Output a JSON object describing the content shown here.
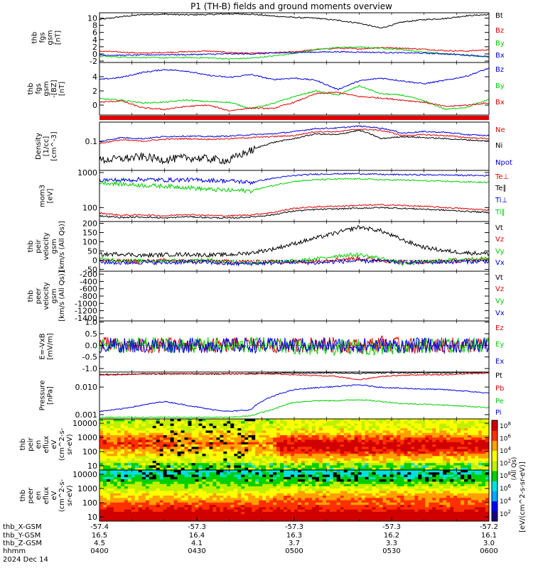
{
  "title": "P1 (TH-B) fields and ground moments overview",
  "colors": {
    "black": "#000000",
    "red": "#e00000",
    "green": "#00d000",
    "blue": "#0000e0"
  },
  "chart_data": [
    {
      "type": "line",
      "panel": "fgs_gsm",
      "ylabel": [
        "thb",
        "fgs",
        "gsm",
        "[nT]"
      ],
      "ylim": [
        -2.4,
        11.5
      ],
      "yticks": [
        "-2",
        "0",
        "2",
        "4",
        "6",
        "8",
        "10"
      ],
      "ytick_values": [
        -2,
        0,
        2,
        4,
        6,
        8,
        10
      ],
      "series": [
        {
          "name": "Bt",
          "color": "#000000",
          "values": [
            9.6,
            10.4,
            11.0,
            11.1,
            10.9,
            11.0,
            11.2,
            11.1,
            10.6,
            10.2,
            10.0,
            9.4,
            8.6,
            7.2,
            8.9,
            9.6,
            9.9,
            10.7,
            11.0
          ]
        },
        {
          "name": "Bz",
          "color": "#e00000",
          "values": [
            0.8,
            0.5,
            0.2,
            0.4,
            0.6,
            0.8,
            0.4,
            0.2,
            0.3,
            0.6,
            1.2,
            1.6,
            1.4,
            1.8,
            1.6,
            1.3,
            0.9,
            0.8,
            1.2
          ]
        },
        {
          "name": "By",
          "color": "#00d000",
          "values": [
            -0.6,
            -0.9,
            -1.0,
            -1.1,
            -1.0,
            -1.1,
            -1.4,
            -1.2,
            -0.6,
            0.2,
            1.2,
            1.8,
            1.9,
            1.6,
            1.2,
            0.5,
            0.0,
            -0.4,
            -0.8
          ]
        },
        {
          "name": "Bx",
          "color": "#0000e0",
          "values": [
            -0.3,
            -0.4,
            -0.3,
            -0.2,
            -0.2,
            -0.1,
            0.0,
            0.0,
            0.2,
            0.4,
            0.5,
            0.6,
            0.5,
            0.4,
            0.3,
            0.2,
            0.0,
            -0.3,
            -0.8
          ]
        }
      ]
    },
    {
      "type": "line",
      "panel": "fgs_gsm_zoom",
      "ylabel": [
        "thb",
        "fgs",
        "gsm",
        "-[BZ]",
        "[nT]"
      ],
      "ylim": [
        -1.4,
        6.0
      ],
      "yticks": [
        "0",
        "2",
        "4"
      ],
      "ytick_values": [
        0,
        2,
        4
      ],
      "series": [
        {
          "name": "Bz",
          "color": "#0000e0",
          "values": [
            3.6,
            3.9,
            4.6,
            5.0,
            4.8,
            4.2,
            3.9,
            4.3,
            3.6,
            3.8,
            3.5,
            2.2,
            3.4,
            3.8,
            3.4,
            3.0,
            3.5,
            4.1,
            5.2
          ]
        },
        {
          "name": "By",
          "color": "#00d000",
          "values": [
            0.9,
            0.7,
            0.3,
            0.4,
            0.7,
            0.5,
            0.4,
            -0.5,
            0.2,
            1.2,
            2.0,
            1.4,
            2.7,
            1.6,
            1.4,
            0.6,
            -0.6,
            -0.3,
            0.8
          ]
        },
        {
          "name": "Bx",
          "color": "#e00000",
          "values": [
            0.4,
            0.6,
            -0.4,
            -0.6,
            -0.2,
            0.0,
            -0.8,
            -0.4,
            -0.5,
            0.4,
            1.6,
            1.8,
            1.2,
            1.0,
            0.7,
            0.4,
            -0.2,
            0.0,
            0.3
          ]
        }
      ]
    },
    {
      "type": "line",
      "panel": "density",
      "ylabel": [
        "Density",
        "[1/cc]",
        "[cm^-3]"
      ],
      "log": true,
      "ylim": [
        0.012,
        0.4
      ],
      "yticks": [
        "0.1"
      ],
      "ytick_values": [
        0.1
      ],
      "series": [
        {
          "name": "Ne",
          "color": "#e00000",
          "values": [
            0.085,
            0.11,
            0.1,
            0.115,
            0.12,
            0.115,
            0.12,
            0.13,
            0.14,
            0.15,
            0.2,
            0.2,
            0.24,
            0.22,
            0.15,
            0.16,
            0.15,
            0.13,
            0.12
          ]
        },
        {
          "name": "Ni",
          "color": "#000000",
          "values": [
            0.025,
            0.028,
            0.032,
            0.026,
            0.03,
            0.028,
            0.024,
            0.05,
            0.09,
            0.12,
            0.17,
            0.16,
            0.22,
            0.12,
            0.14,
            0.13,
            0.12,
            0.11,
            0.1
          ]
        },
        {
          "name": "Npot",
          "color": "#0000e0",
          "values": [
            0.095,
            0.13,
            0.12,
            0.14,
            0.145,
            0.14,
            0.145,
            0.16,
            0.17,
            0.2,
            0.25,
            0.26,
            0.3,
            0.26,
            0.18,
            0.2,
            0.19,
            0.16,
            0.15
          ]
        }
      ]
    },
    {
      "type": "line",
      "panel": "temperature",
      "ylabel": [
        "mom3",
        "[eV]"
      ],
      "log": true,
      "ylim": [
        40,
        1150
      ],
      "yticks": [
        "100",
        "1000"
      ],
      "ytick_values": [
        100,
        1000
      ],
      "series": [
        {
          "name": "Te⊥",
          "color": "#e00000",
          "values": [
            70,
            60,
            62,
            58,
            64,
            60,
            58,
            62,
            72,
            95,
            105,
            110,
            115,
            120,
            115,
            108,
            100,
            92,
            85
          ]
        },
        {
          "name": "Te∥",
          "color": "#000000",
          "values": [
            58,
            52,
            54,
            50,
            55,
            52,
            50,
            54,
            62,
            80,
            88,
            92,
            96,
            100,
            95,
            90,
            84,
            78,
            72
          ]
        },
        {
          "name": "Ti⊥",
          "color": "#0000e0",
          "values": [
            620,
            600,
            640,
            610,
            620,
            600,
            580,
            520,
            680,
            820,
            900,
            920,
            930,
            880,
            870,
            860,
            850,
            830,
            820
          ]
        },
        {
          "name": "Ti∥",
          "color": "#00d000",
          "values": [
            520,
            470,
            430,
            410,
            380,
            330,
            310,
            300,
            420,
            560,
            620,
            650,
            660,
            620,
            610,
            580,
            560,
            540,
            520
          ]
        }
      ]
    },
    {
      "type": "line",
      "panel": "peir_velocity",
      "ylabel": [
        "thb",
        "peir",
        "velocity",
        "gsm",
        "[km/s (All Qs)]"
      ],
      "ylim": [
        -60,
        210
      ],
      "yticks": [
        "-50",
        "0",
        "50",
        "100",
        "150",
        "200"
      ],
      "ytick_values": [
        -50,
        0,
        50,
        100,
        150,
        200
      ],
      "series": [
        {
          "name": "Vt",
          "color": "#000000",
          "values": [
            30,
            35,
            25,
            30,
            32,
            28,
            30,
            40,
            60,
            90,
            120,
            150,
            180,
            160,
            110,
            70,
            50,
            40,
            35
          ]
        },
        {
          "name": "Vz",
          "color": "#e00000",
          "values": [
            0,
            -5,
            -5,
            -3,
            -5,
            -4,
            -8,
            -10,
            -8,
            -12,
            -5,
            5,
            10,
            0,
            -15,
            -10,
            -5,
            0,
            5
          ]
        },
        {
          "name": "Vy",
          "color": "#00d000",
          "values": [
            5,
            0,
            -5,
            0,
            -5,
            0,
            -10,
            -15,
            -10,
            -5,
            5,
            25,
            30,
            10,
            -20,
            -10,
            0,
            5,
            10
          ]
        },
        {
          "name": "Vx",
          "color": "#0000e0",
          "values": [
            -10,
            -15,
            -12,
            -14,
            -10,
            -12,
            -20,
            -18,
            -15,
            -10,
            -15,
            -8,
            -5,
            -5,
            -10,
            -12,
            -10,
            -8,
            -6
          ]
        }
      ]
    },
    {
      "type": "line",
      "panel": "peer_velocity",
      "ylabel": [
        "thb",
        "peer",
        "velocity",
        "gsm",
        "[km/s (All Qs)]"
      ],
      "ylim": [
        -1480,
        -120
      ],
      "yticks": [
        "-1400",
        "-1200",
        "-1000",
        "-800",
        "-600",
        "-400",
        "-200"
      ],
      "ytick_values": [
        -1400,
        -1200,
        -1000,
        -800,
        -600,
        -400,
        -200
      ],
      "series": [
        {
          "name": "Vt",
          "color": "#000000",
          "values": []
        },
        {
          "name": "Vz",
          "color": "#e00000",
          "values": []
        },
        {
          "name": "Vy",
          "color": "#00d000",
          "values": []
        },
        {
          "name": "Vx",
          "color": "#0000e0",
          "values": []
        }
      ]
    },
    {
      "type": "line",
      "panel": "efield",
      "ylabel": [
        "E=-VxB",
        "[mV/m]"
      ],
      "ylim": [
        -1.15,
        1.05
      ],
      "yticks": [
        "-1.0",
        "-0.5",
        "0.0",
        "0.5",
        "1.0"
      ],
      "ytick_values": [
        -1.0,
        -0.5,
        0.0,
        0.5,
        1.0
      ],
      "series": [
        {
          "name": "Ez",
          "color": "#e00000",
          "values": [
            0.05,
            0.0,
            -0.05,
            0.02,
            0.0,
            -0.03,
            0.0,
            0.05,
            -0.02,
            0.0,
            0.05,
            0.02,
            -0.05,
            0.1,
            0.0,
            -0.05,
            0.02,
            0.0,
            0.02
          ]
        },
        {
          "name": "Ey",
          "color": "#00d000",
          "values": [
            0.02,
            -0.05,
            0.05,
            0.0,
            -0.02,
            0.03,
            -0.05,
            0.0,
            0.05,
            -0.05,
            -0.15,
            -0.1,
            -0.05,
            -0.1,
            -0.05,
            0.0,
            -0.05,
            0.02,
            0.0
          ]
        },
        {
          "name": "Ex",
          "color": "#0000e0",
          "values": [
            0.0,
            0.0,
            0.0,
            0.0,
            0.0,
            0.0,
            0.0,
            0.0,
            0.0,
            0.0,
            0.0,
            0.0,
            0.0,
            0.0,
            0.0,
            0.0,
            0.0,
            0.0,
            0.0
          ]
        }
      ]
    },
    {
      "type": "line",
      "panel": "pressure",
      "ylabel": [
        "Pressure",
        "[nPa]"
      ],
      "log": true,
      "ylim": [
        0.0007,
        0.035
      ],
      "yticks": [
        "0.001",
        "0.010"
      ],
      "ytick_values": [
        0.001,
        0.01
      ],
      "series": [
        {
          "name": "Pt",
          "color": "#000000",
          "values": [
            0.028,
            0.029,
            0.03,
            0.03,
            0.03,
            0.03,
            0.03,
            0.031,
            0.032,
            0.032,
            0.032,
            0.033,
            0.031,
            0.033,
            0.033,
            0.033,
            0.033,
            0.033,
            0.034
          ]
        },
        {
          "name": "Pb",
          "color": "#e00000",
          "values": [
            0.027,
            0.028,
            0.03,
            0.03,
            0.03,
            0.03,
            0.03,
            0.03,
            0.03,
            0.028,
            0.026,
            0.024,
            0.018,
            0.024,
            0.027,
            0.028,
            0.028,
            0.03,
            0.032
          ]
        },
        {
          "name": "Pe",
          "color": "#00d000",
          "values": [
            0.0008,
            0.0008,
            0.0008,
            0.0008,
            0.0008,
            0.0008,
            0.0008,
            0.0009,
            0.0015,
            0.0028,
            0.0032,
            0.0032,
            0.0035,
            0.003,
            0.0025,
            0.0024,
            0.0022,
            0.002,
            0.0018
          ]
        },
        {
          "name": "Pi",
          "color": "#0000e0",
          "values": [
            0.0013,
            0.0016,
            0.0022,
            0.003,
            0.0022,
            0.0016,
            0.0013,
            0.0015,
            0.0045,
            0.008,
            0.0095,
            0.0105,
            0.012,
            0.0098,
            0.009,
            0.0085,
            0.008,
            0.007,
            0.006
          ]
        }
      ]
    },
    {
      "type": "heatmap",
      "panel": "peir_eflux",
      "ylabel": [
        "thb",
        "peir",
        "en",
        "eflux",
        "eV",
        "(cm^2-s-",
        "sr-eV)"
      ],
      "log": true,
      "ylim": [
        5,
        20000
      ],
      "yticks": [
        "10",
        "100",
        "1000",
        "10000"
      ],
      "ytick_values": [
        10,
        100,
        1000,
        10000
      ]
    },
    {
      "type": "heatmap",
      "panel": "peer_eflux",
      "ylabel": [
        "thb",
        "peer",
        "en",
        "eflux",
        "eV",
        "(cm^2-s-",
        "sr-eV)"
      ],
      "log": true,
      "ylim": [
        5,
        20000
      ],
      "yticks": [
        "10",
        "100",
        "1000",
        "10000"
      ],
      "ytick_values": [
        10,
        100,
        1000,
        10000
      ]
    }
  ],
  "colorbar": {
    "label": "[eV/(cm^2-s-sr-eV)]",
    "sublabel": "(All Qs)",
    "ticks": [
      "10^2",
      "10^4",
      "10^6",
      "10^8"
    ],
    "colors": [
      "#1a0080",
      "#0000ff",
      "#00aaff",
      "#00e0e0",
      "#00d000",
      "#c0f000",
      "#ffff00",
      "#ffa000",
      "#ff3000",
      "#d00000"
    ]
  },
  "xaxis": {
    "row_labels": [
      "thb_X-GSM",
      "thb_Y-GSM",
      "thb_Z-GSM",
      "hhmm",
      "2024 Dec 14"
    ],
    "ticks": [
      {
        "values": [
          "-57.4",
          "16.5",
          "4.5",
          "0400"
        ]
      },
      {
        "values": [
          "-57.3",
          "16.4",
          "4.1",
          "0430"
        ]
      },
      {
        "values": [
          "-57.3",
          "16.3",
          "3.7",
          "0500"
        ]
      },
      {
        "values": [
          "-57.3",
          "16.2",
          "3.3",
          "0530"
        ]
      },
      {
        "values": [
          "-57.2",
          "16.1",
          "3.0",
          "0600"
        ]
      }
    ]
  }
}
